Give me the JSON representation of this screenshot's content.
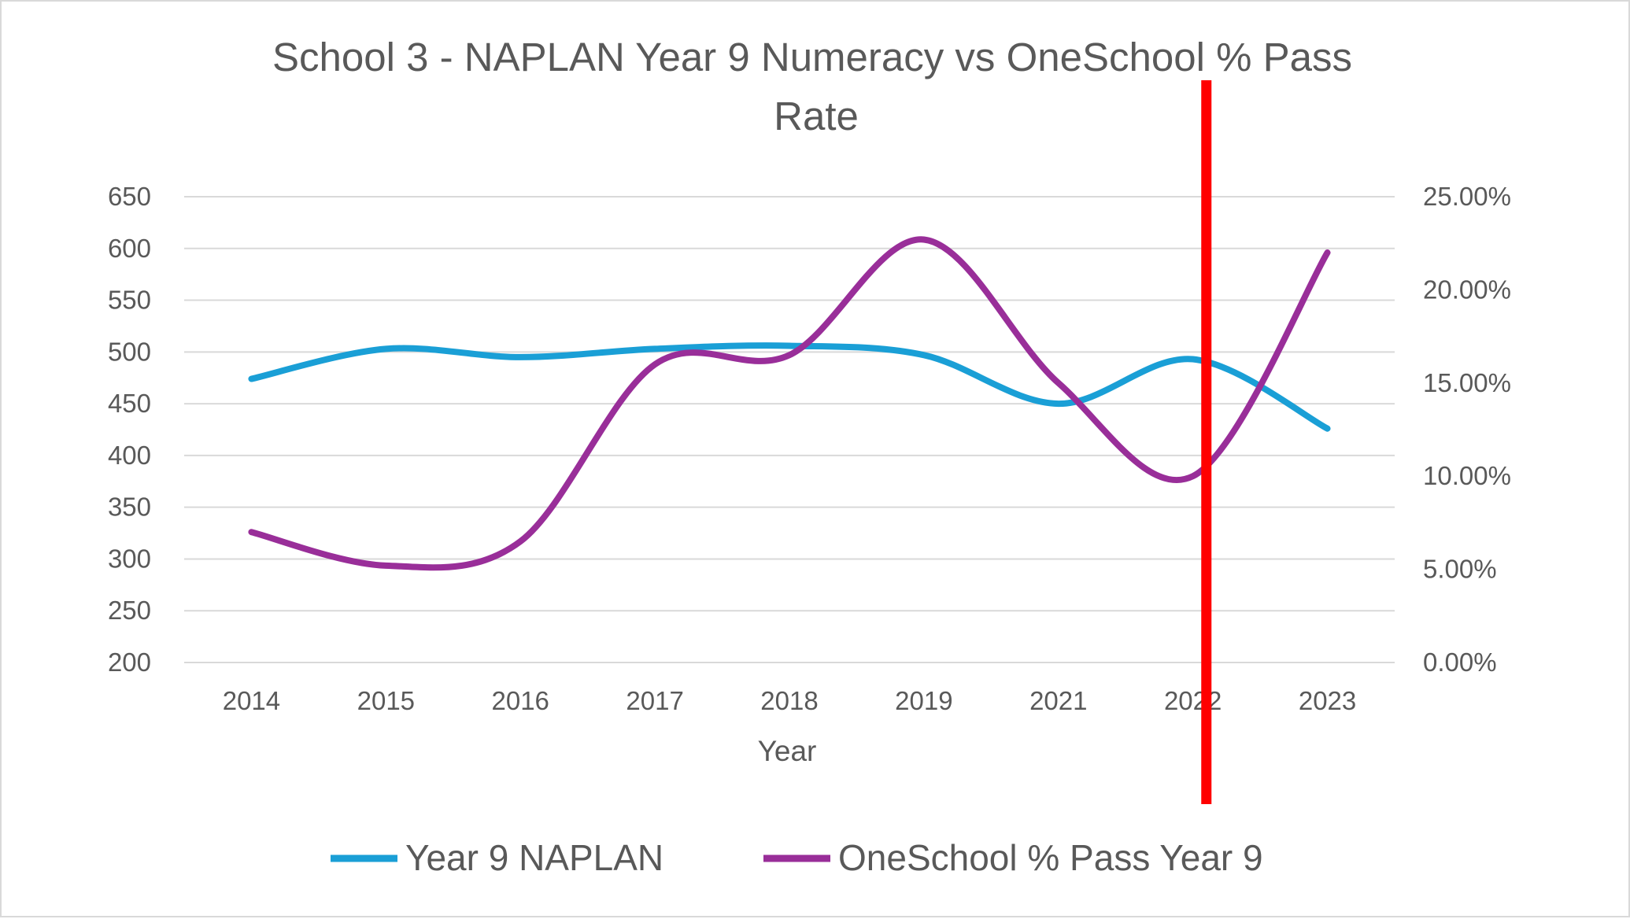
{
  "chart_data": {
    "type": "line",
    "title_line1": "School 3 - NAPLAN Year 9 Numeracy vs OneSchool % Pass",
    "title_line2": "Rate",
    "categories": [
      "2014",
      "2015",
      "2016",
      "2017",
      "2018",
      "2019",
      "2021",
      "2022",
      "2023"
    ],
    "xlabel": "Year",
    "y_left": {
      "min": 200,
      "max": 650,
      "ticks": [
        "650",
        "600",
        "550",
        "500",
        "450",
        "400",
        "350",
        "300",
        "250",
        "200"
      ]
    },
    "y_right": {
      "min": 0,
      "max": 0.25,
      "ticks": [
        "25.00%",
        "20.00%",
        "15.00%",
        "10.00%",
        "5.00%",
        "0.00%"
      ]
    },
    "series": [
      {
        "name": "Year 9 NAPLAN",
        "axis": "left",
        "color": "#1a9fd6",
        "values": [
          474,
          503,
          495,
          503,
          506,
          497,
          450,
          493,
          426
        ]
      },
      {
        "name": "OneSchool % Pass Year 9",
        "axis": "right",
        "color": "#992e99",
        "values": [
          0.07,
          0.052,
          0.065,
          0.16,
          0.165,
          0.227,
          0.15,
          0.1,
          0.22
        ]
      }
    ],
    "marker_line": {
      "color": "#ff0000",
      "category": "2022",
      "offset": 0.1
    },
    "grid": true,
    "legend_position": "bottom"
  }
}
